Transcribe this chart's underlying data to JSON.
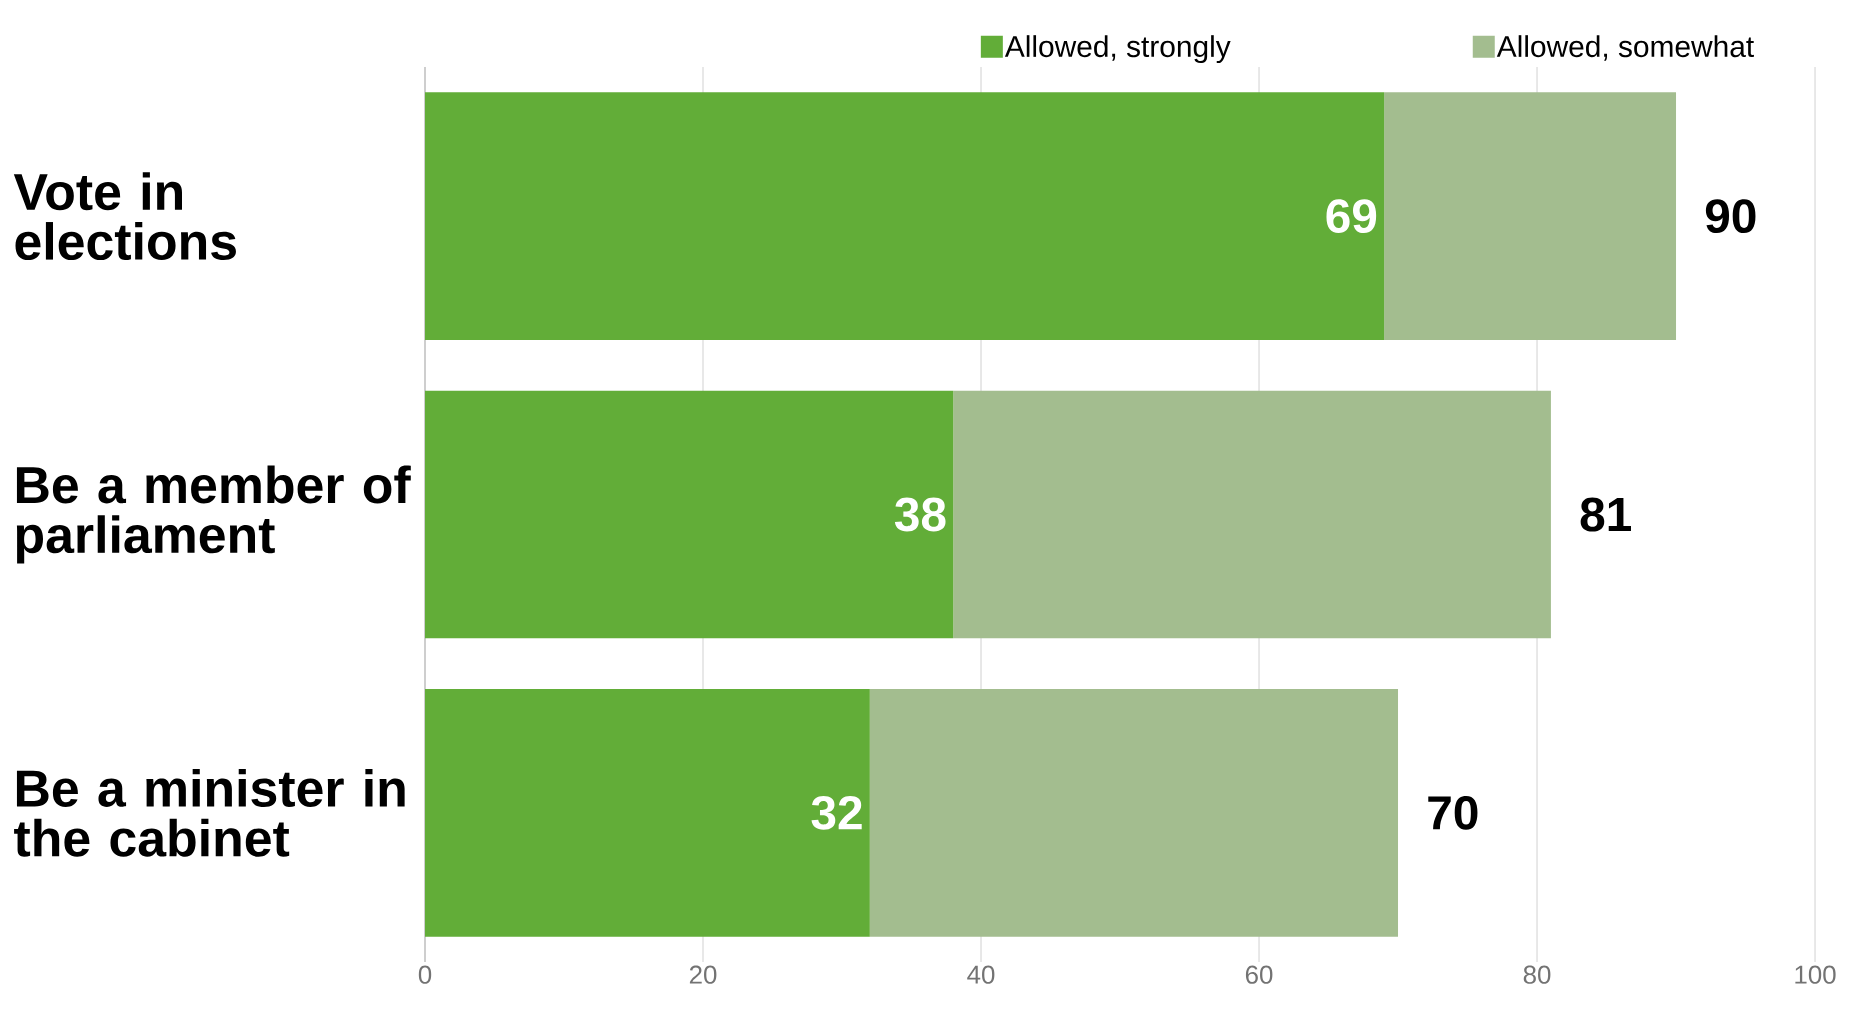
{
  "chart_data": {
    "type": "bar",
    "orientation": "horizontal",
    "stacked": true,
    "categories": [
      "Vote in elections",
      "Be a member of parliament",
      "Be a minister in the cabinet"
    ],
    "series": [
      {
        "name": "Allowed, strongly",
        "color": "#62ad38",
        "values": [
          69,
          38,
          32
        ],
        "value_labels": [
          "69",
          "38",
          "32"
        ]
      },
      {
        "name": "Allowed, somewhat",
        "color": "#a3bd8f",
        "values": [
          21,
          43,
          38
        ]
      }
    ],
    "totals": [
      "90",
      "81",
      "70"
    ],
    "xlim": [
      0,
      100
    ],
    "xticks": [
      0,
      20,
      40,
      60,
      80,
      100
    ],
    "grid": "x",
    "legend": "top right"
  }
}
